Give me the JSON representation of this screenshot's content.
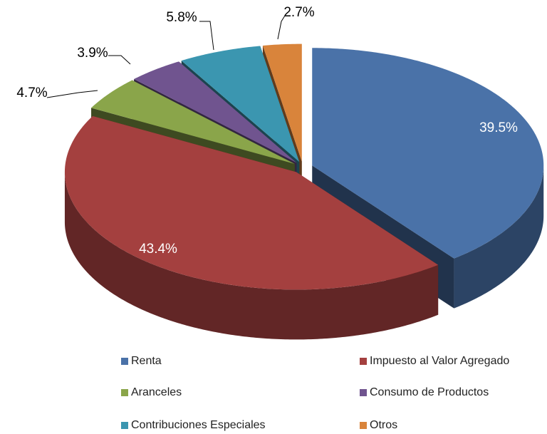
{
  "chart_data": {
    "type": "pie",
    "categories": [
      "Renta",
      "Impuesto al Valor Agregado",
      "Aranceles",
      "Consumo de Productos",
      "Contribuciones Especiales",
      "Otros"
    ],
    "values": [
      39.5,
      43.4,
      4.7,
      3.9,
      5.8,
      2.7
    ],
    "value_labels": [
      "39.5%",
      "43.4%",
      "4.7%",
      "3.9%",
      "5.8%",
      "2.7%"
    ],
    "colors": [
      "#4a72a8",
      "#a4403f",
      "#8aa54a",
      "#70548f",
      "#3b96b0",
      "#d9843b"
    ],
    "legend": "bottom"
  }
}
